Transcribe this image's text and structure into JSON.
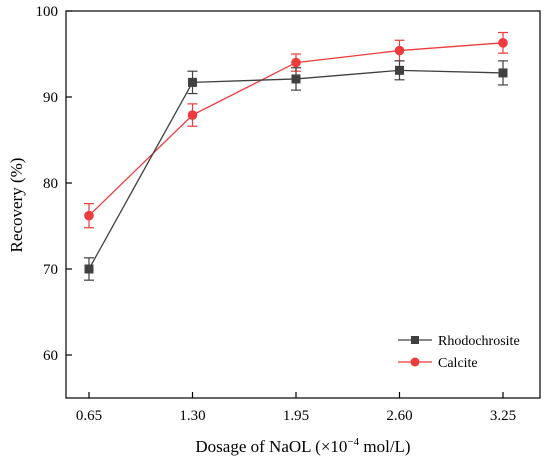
{
  "chart_data": {
    "type": "line",
    "xlabel": "Dosage of NaOL (×10",
    "xlabel_sup": "−4",
    "xlabel_suffix": " mol/L)",
    "ylabel": "Recovery (%)",
    "categories": [
      "0.65",
      "1.30",
      "1.95",
      "2.60",
      "3.25"
    ],
    "ylim": [
      55,
      100
    ],
    "yticks": [
      60,
      70,
      80,
      90,
      100
    ],
    "grid": false,
    "legend_position": "bottom-right",
    "series": [
      {
        "name": "Rhodochrosite",
        "color": "#404040",
        "marker": "square",
        "values": [
          70.0,
          91.7,
          92.1,
          93.1,
          92.8
        ],
        "errors": [
          1.3,
          1.3,
          1.3,
          1.1,
          1.4
        ]
      },
      {
        "name": "Calcite",
        "color": "#ee3b3b",
        "marker": "circle",
        "values": [
          76.2,
          87.9,
          94.0,
          95.4,
          96.3
        ],
        "errors": [
          1.4,
          1.3,
          1.0,
          1.2,
          1.2
        ]
      }
    ]
  }
}
